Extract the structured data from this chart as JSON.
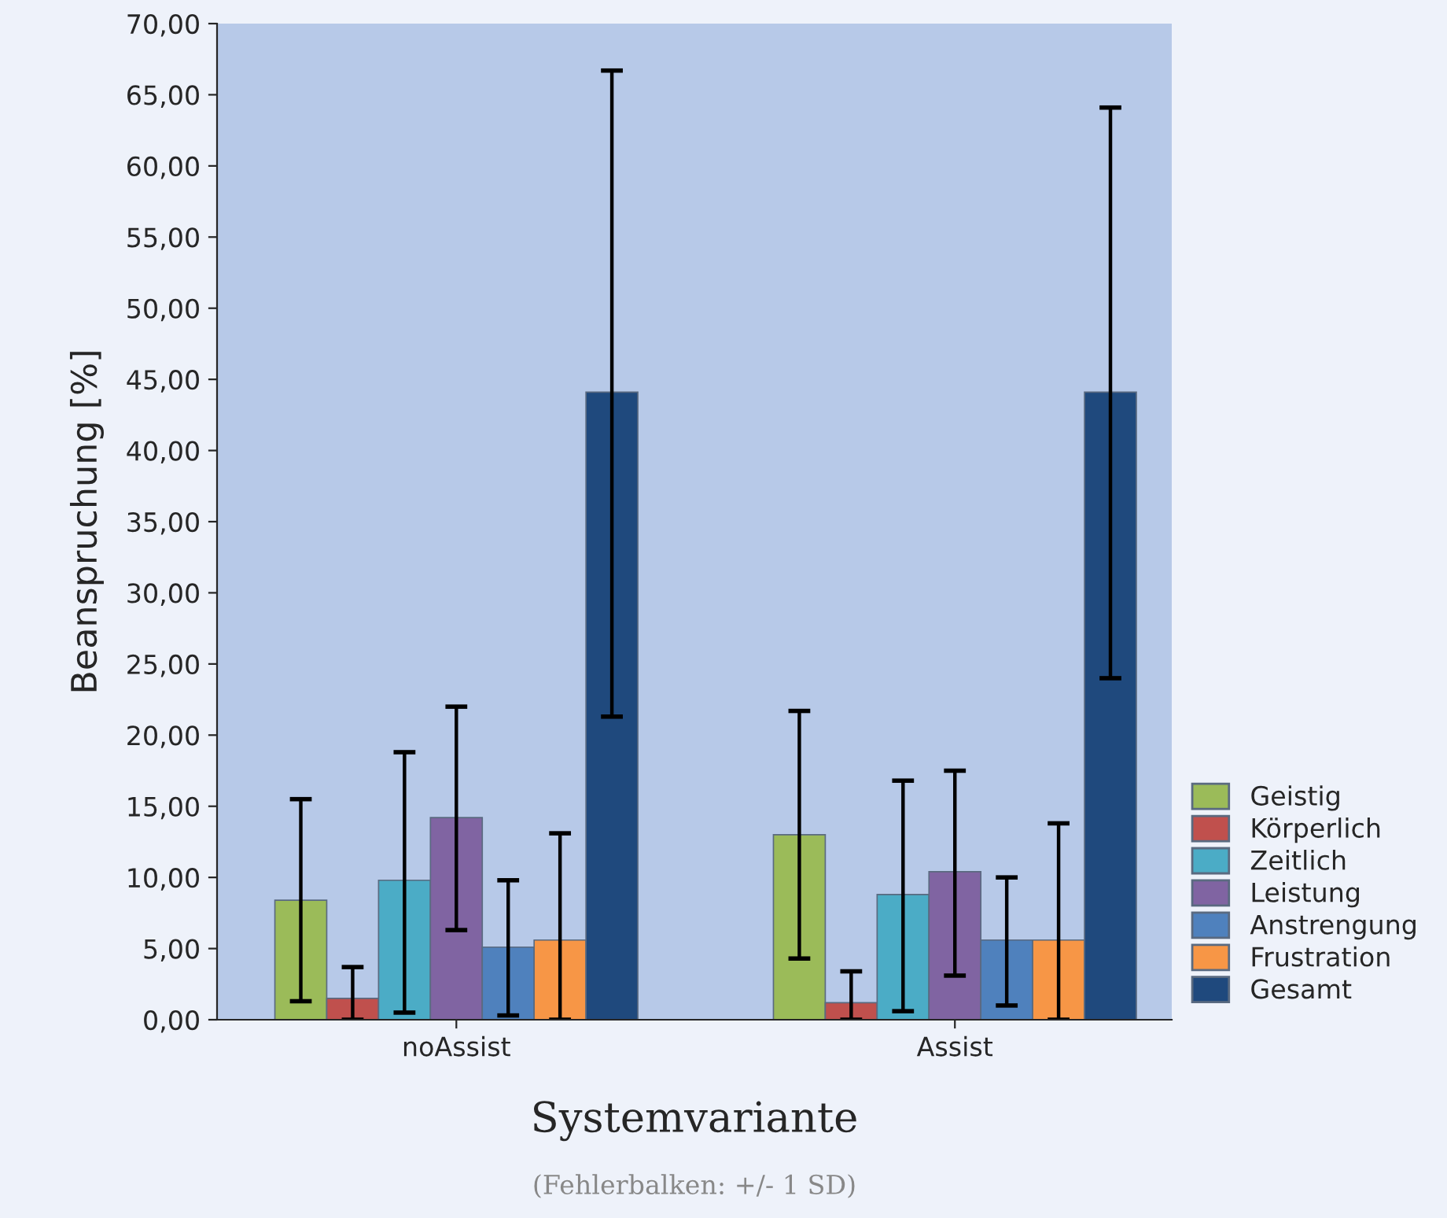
{
  "chart_data": {
    "type": "bar",
    "categories": [
      "noAssist",
      "Assist"
    ],
    "xlabel": "Systemvariante",
    "ylabel": "Beanspruchung [%]",
    "annotations": [
      "(Fehlerbalken: +/- 1 SD)"
    ],
    "series": [
      {
        "name": "Geistig",
        "color": "#9bbb59",
        "values": [
          8.4,
          13.0
        ],
        "errors": [
          [
            1.3,
            15.5
          ],
          [
            4.3,
            21.7
          ]
        ]
      },
      {
        "name": "Körperlich",
        "color": "#c0504d",
        "values": [
          1.5,
          1.2
        ],
        "errors": [
          [
            0,
            3.7
          ],
          [
            0,
            3.4
          ]
        ]
      },
      {
        "name": "Zeitlich",
        "color": "#4bacc6",
        "values": [
          9.8,
          8.8
        ],
        "errors": [
          [
            0.5,
            18.8
          ],
          [
            0.6,
            16.8
          ]
        ]
      },
      {
        "name": "Leistung",
        "color": "#8064a2",
        "values": [
          14.2,
          10.4
        ],
        "errors": [
          [
            6.3,
            22.0
          ],
          [
            3.1,
            17.5
          ]
        ]
      },
      {
        "name": "Anstrengung",
        "color": "#4f81bd",
        "values": [
          5.1,
          5.6
        ],
        "errors": [
          [
            0.3,
            9.8
          ],
          [
            1.0,
            10.0
          ]
        ]
      },
      {
        "name": "Frustration",
        "color": "#f79646",
        "values": [
          5.6,
          5.6
        ],
        "errors": [
          [
            0,
            13.1
          ],
          [
            0,
            13.8
          ]
        ]
      },
      {
        "name": "Gesamt",
        "color": "#1f497d",
        "values": [
          44.1,
          44.1
        ],
        "errors": [
          [
            21.3,
            66.7
          ],
          [
            24.0,
            64.1
          ]
        ]
      }
    ],
    "ylim": [
      0,
      70
    ],
    "yticks": [
      {
        "value": 0,
        "label": "0,00"
      },
      {
        "value": 5,
        "label": "5,00"
      },
      {
        "value": 10,
        "label": "10,00"
      },
      {
        "value": 15,
        "label": "15,00"
      },
      {
        "value": 20,
        "label": "20,00"
      },
      {
        "value": 25,
        "label": "25,00"
      },
      {
        "value": 30,
        "label": "30,00"
      },
      {
        "value": 35,
        "label": "35,00"
      },
      {
        "value": 40,
        "label": "40,00"
      },
      {
        "value": 45,
        "label": "45,00"
      },
      {
        "value": 50,
        "label": "50,00"
      },
      {
        "value": 55,
        "label": "55,00"
      },
      {
        "value": 60,
        "label": "60,00"
      },
      {
        "value": 65,
        "label": "65,00"
      },
      {
        "value": 70,
        "label": "70,00"
      }
    ],
    "grid": false,
    "legend": "right"
  }
}
